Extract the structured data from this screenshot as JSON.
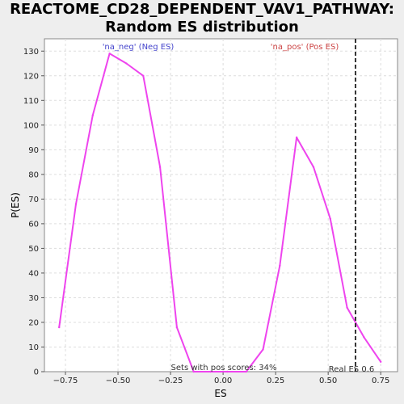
{
  "chart_data": {
    "type": "line",
    "title_line1": "REACTOME_CD28_DEPENDENT_VAV1_PATHWAY:",
    "title_line2": "Random ES distribution",
    "xlabel": "ES",
    "ylabel": "P(ES)",
    "xlim": [
      -0.85,
      0.83
    ],
    "ylim": [
      0,
      135
    ],
    "xticks": [
      -0.75,
      -0.5,
      -0.25,
      0.0,
      0.25,
      0.5,
      0.75
    ],
    "xtick_labels": [
      "−0.75",
      "−0.50",
      "−0.25",
      "0.00",
      "0.25",
      "0.50",
      "0.75"
    ],
    "yticks": [
      0,
      10,
      20,
      30,
      40,
      50,
      60,
      70,
      80,
      90,
      100,
      110,
      120,
      130
    ],
    "grid": true,
    "series": [
      {
        "color": "#ee44ee",
        "x": [
          -0.78,
          -0.7,
          -0.62,
          -0.54,
          -0.46,
          -0.38,
          -0.3,
          -0.22,
          -0.14,
          -0.06,
          0.02,
          0.11,
          0.19,
          0.27,
          0.35,
          0.43,
          0.51,
          0.59,
          0.67,
          0.75
        ],
        "y": [
          18,
          68,
          104,
          129,
          125,
          120,
          83,
          18,
          0,
          0,
          0,
          0,
          9,
          43,
          95,
          83,
          62,
          26,
          14,
          4
        ]
      }
    ],
    "annotations": {
      "neg_label": "'na_neg' (Neg ES)",
      "neg_color": "#4444cc",
      "pos_label": "'na_pos' (Pos ES)",
      "pos_color": "#cc4444",
      "pos_scores_text": "Sets with pos scores: 34%",
      "real_es_text": "Real ES 0.6",
      "real_es_value": 0.63
    }
  }
}
